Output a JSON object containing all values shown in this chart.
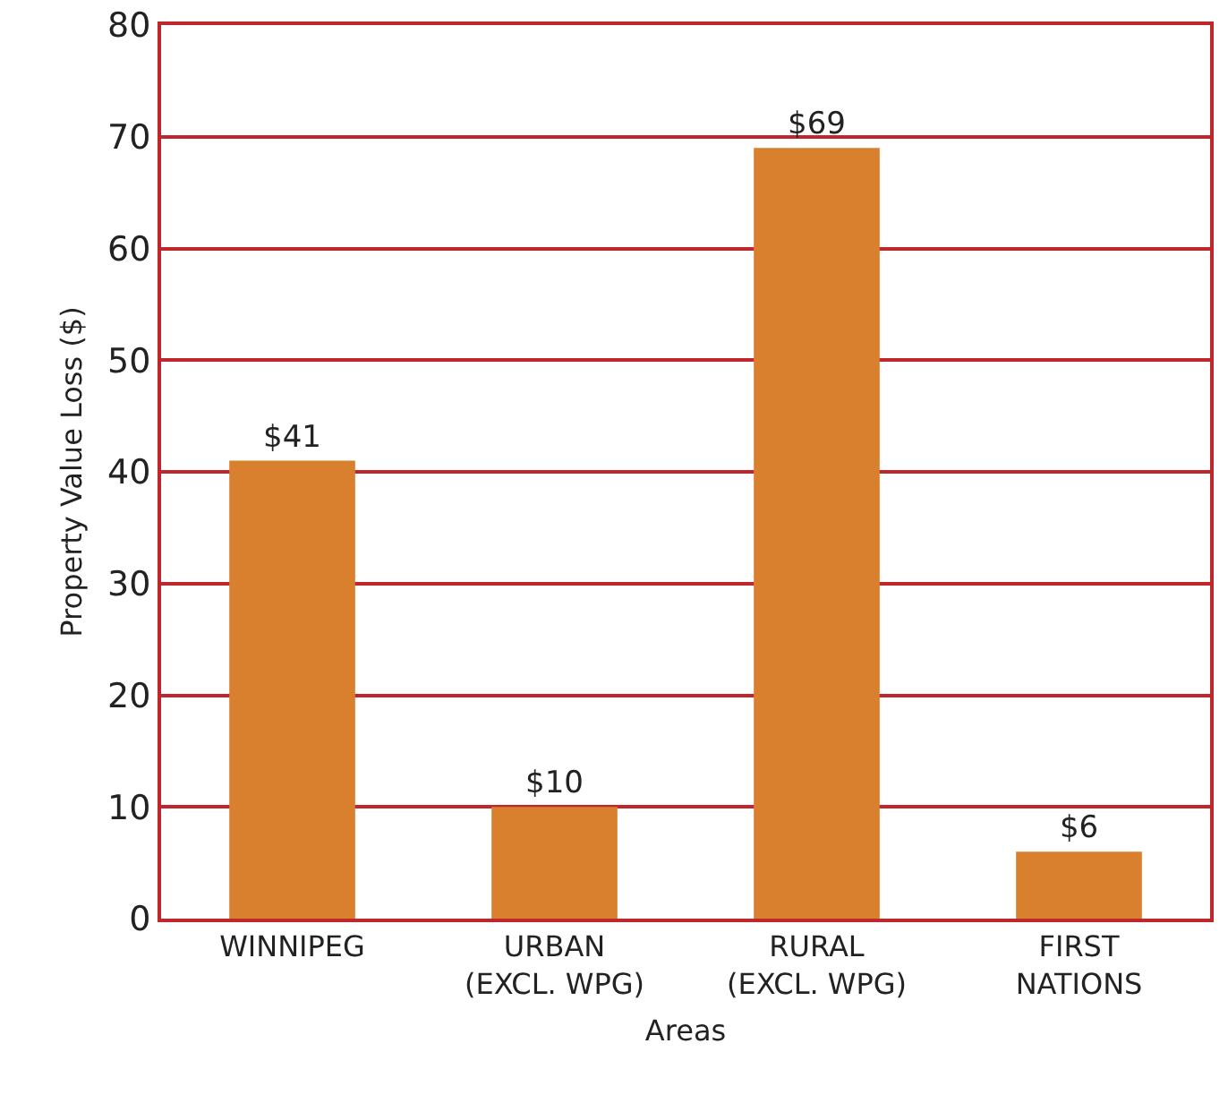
{
  "chart_data": {
    "type": "bar",
    "xlabel": "Areas",
    "ylabel": "Property Value Loss ($)",
    "categories": [
      "WINNIPEG",
      "URBAN\n(EXCL. WPG)",
      "RURAL\n(EXCL. WPG)",
      "FIRST\nNATIONS"
    ],
    "values": [
      41,
      10,
      69,
      6
    ],
    "value_labels": [
      "$41",
      "$10",
      "$69",
      "$6"
    ],
    "color": "#d8802e",
    "ylim": [
      0,
      80
    ],
    "yticks": [
      0,
      10,
      20,
      30,
      40,
      50,
      60,
      70,
      80
    ],
    "grid": "y"
  }
}
